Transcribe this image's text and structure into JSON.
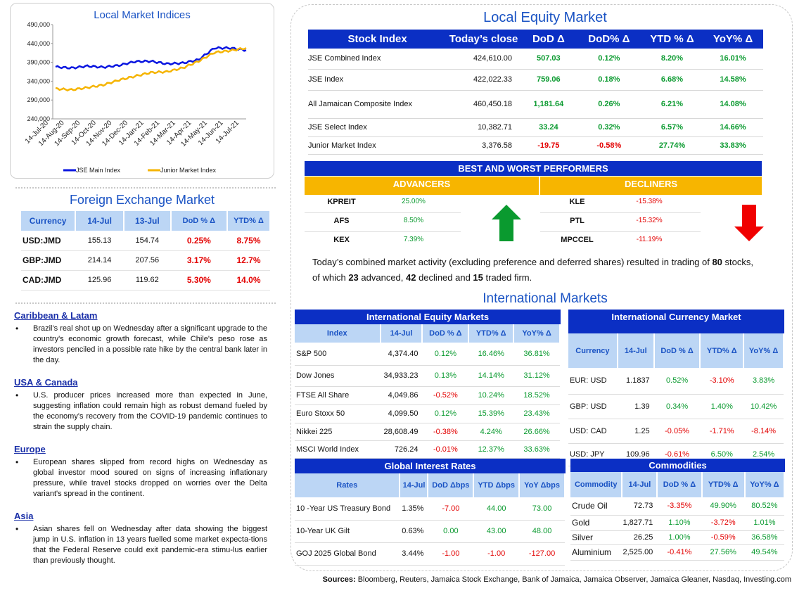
{
  "chart": {
    "title": "Local Market Indices",
    "legend": [
      {
        "name": "JSE Main Index",
        "color": "#0a16e0"
      },
      {
        "name": "Junior Market Index",
        "color": "#f5b400"
      }
    ]
  },
  "chart_data": {
    "type": "line",
    "title": "Local Market Indices",
    "x": [
      "14-Jul-20",
      "14-Aug-20",
      "14-Sep-20",
      "14-Oct-20",
      "14-Nov-20",
      "14-Dec-20",
      "14-Jan-21",
      "14-Feb-21",
      "14-Mar-21",
      "14-Apr-21",
      "14-May-21",
      "14-Jun-21",
      "14-Jul-21"
    ],
    "ylim": [
      240000,
      490000
    ],
    "yticks": [
      "490,000",
      "440,000",
      "390,000",
      "340,000",
      "290,000",
      "240,000"
    ],
    "series": [
      {
        "name": "JSE Main Index",
        "color": "#0a16e0",
        "values": [
          378000,
          375000,
          380000,
          377000,
          382000,
          392000,
          393000,
          386000,
          388000,
          397000,
          428000,
          428000,
          422000
        ]
      },
      {
        "name": "Junior Market Index",
        "color": "#f5b400",
        "values": [
          320000,
          317000,
          323000,
          330000,
          343000,
          353000,
          363000,
          365000,
          375000,
          393000,
          416000,
          421000,
          428000
        ]
      }
    ],
    "grid": false,
    "legend_position": "bottom"
  },
  "fx": {
    "title": "Foreign Exchange Market",
    "headers": [
      "Currency",
      "14-Jul",
      "13-Jul",
      "DoD % Δ",
      "YTD% Δ"
    ],
    "rows": [
      {
        "cur": "USD:JMD",
        "a": "155.13",
        "b": "154.74",
        "dod": "0.25%",
        "ytd": "8.75%"
      },
      {
        "cur": "GBP:JMD",
        "a": "214.14",
        "b": "207.56",
        "dod": "3.17%",
        "ytd": "12.7%"
      },
      {
        "cur": "CAD:JMD",
        "a": "125.96",
        "b": "119.62",
        "dod": "5.30%",
        "ytd": "14.0%"
      }
    ]
  },
  "news": [
    {
      "heading": "Caribbean & Latam",
      "text": "Brazil's real shot up on Wednesday after a significant upgrade to the country's economic growth forecast, while Chile's peso rose as investors penciled in a possible rate hike by the central bank later in the day."
    },
    {
      "heading": "USA & Canada",
      "text": "U.S. producer prices increased more than expected in June, suggesting inflation could remain high as robust demand fueled by the economy's recovery from the COVID-19 pandemic continues to strain the supply chain."
    },
    {
      "heading": "Europe",
      "text": "European shares slipped from record highs on Wednesday as global investor mood soured on signs of increasing inflationary pressure, while travel stocks dropped on worries over the Delta variant's spread in the continent."
    },
    {
      "heading": "Asia",
      "text": "Asian shares fell on Wednesday after data showing the biggest jump in U.S. inflation in 13 years fuelled some market expecta-tions that the Federal Reserve could exit pandemic-era stimu-lus earlier than previously thought."
    }
  ],
  "equity": {
    "title": "Local Equity Market",
    "headers": [
      "Stock Index",
      "Today’s close",
      "DoD  Δ",
      "DoD% Δ",
      "YTD % Δ",
      "YoY% Δ"
    ],
    "rows": [
      {
        "name": "JSE Combined Index",
        "close": "424,610.00",
        "dod": "507.03",
        "dodp": "0.12%",
        "ytd": "8.20%",
        "yoy": "16.01%"
      },
      {
        "name": "JSE Index",
        "close": "422,022.33",
        "dod": "759.06",
        "dodp": "0.18%",
        "ytd": "6.68%",
        "yoy": "14.58%"
      },
      {
        "name": "All Jamaican Composite Index",
        "close": "460,450.18",
        "dod": "1,181.64",
        "dodp": "0.26%",
        "ytd": "6.21%",
        "yoy": "14.08%"
      },
      {
        "name": "JSE Select Index",
        "close": "10,382.71",
        "dod": "33.24",
        "dodp": "0.32%",
        "ytd": "6.57%",
        "yoy": "14.66%"
      },
      {
        "name": "Junior Market Index",
        "close": "3,376.58",
        "dod": "-19.75",
        "dodp": "-0.58%",
        "ytd": "27.74%",
        "yoy": "33.83%"
      }
    ]
  },
  "performers": {
    "title": "BEST AND WORST PERFORMERS",
    "advancers_label": "ADVANCERS",
    "decliners_label": "DECLINERS",
    "advancers": [
      {
        "ticker": "KPREIT",
        "pct": "25.00%"
      },
      {
        "ticker": "AFS",
        "pct": "8.50%"
      },
      {
        "ticker": "KEX",
        "pct": "7.39%"
      }
    ],
    "decliners": [
      {
        "ticker": "KLE",
        "pct": "-15.38%"
      },
      {
        "ticker": "PTL",
        "pct": "-15.32%"
      },
      {
        "ticker": "MPCCEL",
        "pct": "-11.19%"
      }
    ]
  },
  "summary": {
    "t1": "Today’s combined market activity (excluding preference and deferred shares) resulted in trading of ",
    "stocks": "80",
    "t2": " stocks, of which ",
    "adv": "23",
    "t3": " advanced, ",
    "dec": "42",
    "t4": " declined and ",
    "flat": "15",
    "t5": " traded firm."
  },
  "intl_title": "International Markets",
  "intl_equity": {
    "title": "International Equity Markets",
    "headers": [
      "Index",
      "14-Jul",
      "DoD % Δ",
      "YTD% Δ",
      "YoY% Δ"
    ],
    "rows": [
      {
        "name": "S&P 500",
        "v": "4,374.40",
        "dod": "0.12%",
        "ytd": "16.46%",
        "yoy": "36.81%"
      },
      {
        "name": "Dow Jones",
        "v": "34,933.23",
        "dod": "0.13%",
        "ytd": "14.14%",
        "yoy": "31.12%"
      },
      {
        "name": "FTSE All Share",
        "v": "4,049.86",
        "dod": "-0.52%",
        "ytd": "10.24%",
        "yoy": "18.52%"
      },
      {
        "name": "Euro Stoxx 50",
        "v": "4,099.50",
        "dod": "0.12%",
        "ytd": "15.39%",
        "yoy": "23.43%"
      },
      {
        "name": "Nikkei 225",
        "v": "28,608.49",
        "dod": "-0.38%",
        "ytd": "4.24%",
        "yoy": "26.66%"
      },
      {
        "name": "MSCI World Index",
        "v": "726.24",
        "dod": "-0.01%",
        "ytd": "12.37%",
        "yoy": "33.63%"
      }
    ]
  },
  "intl_currency": {
    "title": "International Currency Market",
    "headers": [
      "Currency",
      "14-Jul",
      "DoD % Δ",
      "YTD% Δ",
      "YoY% Δ"
    ],
    "rows": [
      {
        "name": "EUR: USD",
        "v": "1.1837",
        "dod": "0.52%",
        "ytd": "-3.10%",
        "yoy": "3.83%"
      },
      {
        "name": "GBP: USD",
        "v": "1.39",
        "dod": "0.34%",
        "ytd": "1.40%",
        "yoy": "10.42%"
      },
      {
        "name": "USD: CAD",
        "v": "1.25",
        "dod": "-0.05%",
        "ytd": "-1.71%",
        "yoy": "-8.14%"
      },
      {
        "name": "USD: JPY",
        "v": "109.96",
        "dod": "-0.61%",
        "ytd": "6.50%",
        "yoy": "2.54%"
      }
    ]
  },
  "rates": {
    "title": "Global Interest Rates",
    "headers": [
      "Rates",
      "14-Jul",
      "DoD Δbps",
      "YTD Δbps",
      "YoY Δbps"
    ],
    "rows": [
      {
        "name": "10 -Year US Treasury Bond",
        "v": "1.35%",
        "dod": "-7.00",
        "ytd": "44.00",
        "yoy": "73.00"
      },
      {
        "name": "10-Year UK Gilt",
        "v": "0.63%",
        "dod": "0.00",
        "ytd": "43.00",
        "yoy": "48.00"
      },
      {
        "name": "GOJ 2025 Global Bond",
        "v": "3.44%",
        "dod": "-1.00",
        "ytd": "-1.00",
        "yoy": "-127.00"
      }
    ]
  },
  "commodities": {
    "title": "Commodities",
    "headers": [
      "Commodity",
      "14-Jul",
      "DoD % Δ",
      "YTD% Δ",
      "YoY% Δ"
    ],
    "rows": [
      {
        "name": "Crude Oil",
        "v": "72.73",
        "dod": "-3.35%",
        "ytd": "49.90%",
        "yoy": "80.52%"
      },
      {
        "name": "Gold",
        "v": "1,827.71",
        "dod": "1.10%",
        "ytd": "-3.72%",
        "yoy": "1.01%"
      },
      {
        "name": "Silver",
        "v": "26.25",
        "dod": "1.00%",
        "ytd": "-0.59%",
        "yoy": "36.58%"
      },
      {
        "name": "Aluminium",
        "v": "2,525.00",
        "dod": "-0.41%",
        "ytd": "27.56%",
        "yoy": "49.54%"
      }
    ]
  },
  "sources": {
    "label": "Sources:",
    "text": " Bloomberg, Reuters, Jamaica Stock Exchange, Bank of Jamaica, Jamaica Observer, Jamaica Gleaner, Nasdaq, Investing.com"
  },
  "colors": {
    "green": "#0a9a2f",
    "red": "#e30000",
    "header_blue": "#0b2fc4",
    "header_light": "#bcd6f5",
    "gold": "#f7b500"
  }
}
